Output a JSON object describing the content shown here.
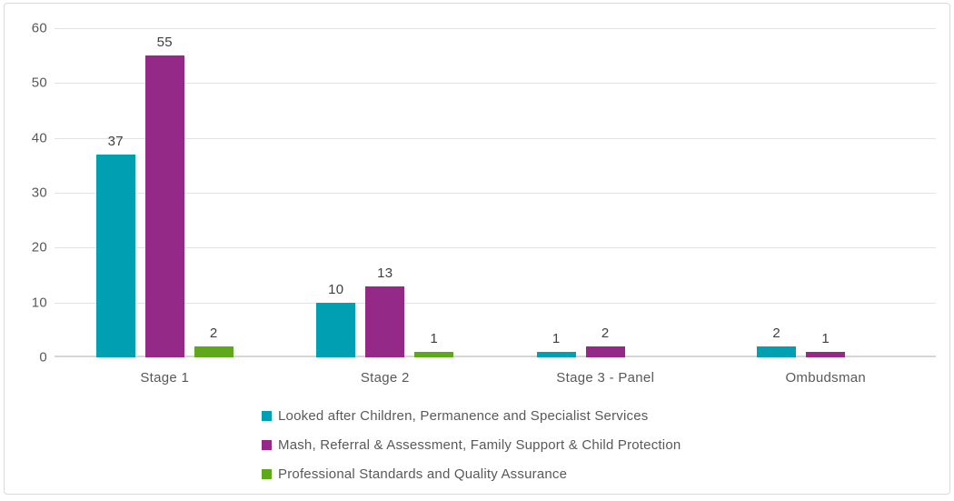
{
  "chart_data": {
    "type": "bar",
    "categories": [
      "Stage 1",
      "Stage 2",
      "Stage 3 - Panel",
      "Ombudsman"
    ],
    "series": [
      {
        "name": "Looked after Children, Permanence and Specialist Services",
        "color": "#00A0B2",
        "values": [
          37,
          10,
          1,
          2
        ]
      },
      {
        "name": "Mash, Referral & Assessment, Family Support & Child Protection",
        "color": "#942988",
        "values": [
          55,
          13,
          2,
          1
        ]
      },
      {
        "name": "Professional Standards and Quality Assurance",
        "color": "#5FA81C",
        "values": [
          2,
          1,
          0,
          0
        ]
      }
    ],
    "ylim": [
      0,
      60
    ],
    "yticks": [
      0,
      10,
      20,
      30,
      40,
      50,
      60
    ],
    "grid": true,
    "show_value_labels": true,
    "hide_zero_bars": true,
    "legend_position": "bottom-left"
  },
  "styles": {
    "grid_color": "#e2e2e2",
    "axis_line_color": "#d6d6d6",
    "tick_label_color": "#595959",
    "value_label_color": "#3f3f3f",
    "frame_border_color": "#dadada",
    "background": "#ffffff"
  }
}
